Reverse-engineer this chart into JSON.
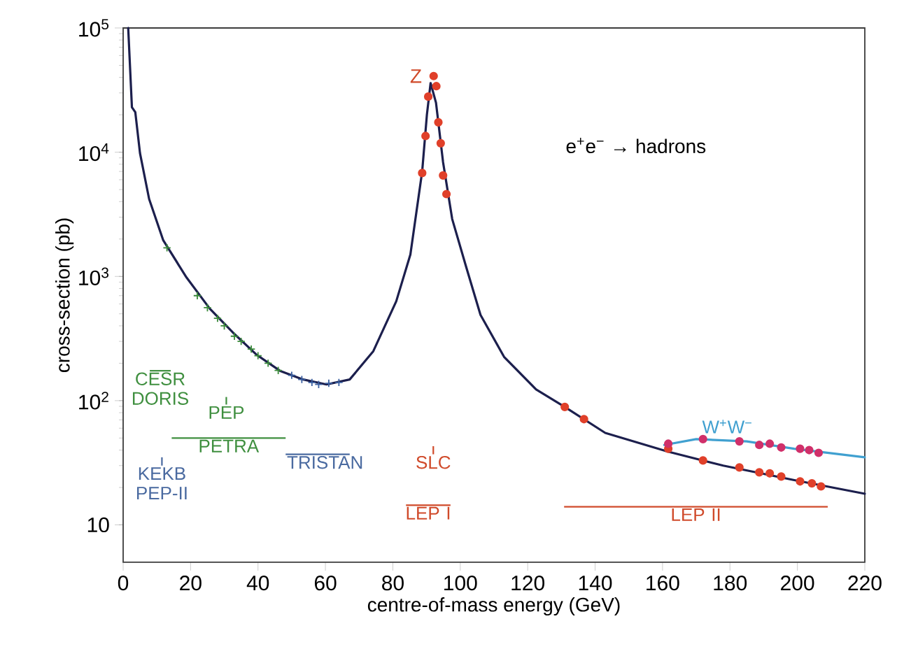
{
  "chart_data": {
    "type": "line",
    "xlabel": "centre-of-mass energy (GeV)",
    "ylabel": "cross-section (pb)",
    "log": "y",
    "xlim": [
      0,
      220
    ],
    "ylim": [
      5,
      100000
    ],
    "xticks": [
      0,
      20,
      40,
      60,
      80,
      100,
      120,
      140,
      160,
      180,
      200,
      220
    ],
    "yticks": [
      {
        "value": 10,
        "label": "10"
      },
      {
        "value": 100,
        "label": "10$^{2}$"
      },
      {
        "value": 1000,
        "label": "10$^{3}$"
      },
      {
        "value": 10000,
        "label": "10$^{4}$"
      },
      {
        "value": 100000,
        "label": "10$^{5}$"
      }
    ],
    "grid": false,
    "annotations": [
      "e$^{+}$e$^{−}$ → hadrons",
      {
        "text": "Z",
        "x": 91.2,
        "y": 41000
      }
    ],
    "series": [
      {
        "color": "#1c1f4d",
        "x": [
          1.5,
          2.6,
          3.6,
          5,
          7.7,
          11.9,
          18.8,
          25.7,
          32.7,
          39.5,
          46.5,
          53.4,
          60.3,
          67.2,
          74.2,
          81,
          85.2,
          88.7,
          90.1,
          91.2,
          92.8,
          94.9,
          97.6,
          101.8,
          106,
          113,
          122.5,
          131,
          143,
          161.4,
          178,
          198.8,
          220
        ],
        "values": [
          100000,
          23000,
          21000,
          9800,
          4200,
          1950,
          980,
          550,
          350,
          235,
          174,
          148,
          135,
          148,
          250,
          630,
          1500,
          7000,
          20000,
          36000,
          25000,
          8300,
          2900,
          1180,
          490,
          225,
          123,
          89,
          55,
          39,
          30,
          23,
          17.8
        ]
      },
      {
        "name": "W$^{+}$W$^{−}$",
        "color": "#40a0d0",
        "x": [
          160.5,
          170,
          185,
          199,
          220
        ],
        "values": [
          44,
          49,
          47,
          41,
          35
        ]
      },
      {
        "type": "scatter",
        "marker": "cross",
        "color": "#3a8a3a",
        "x": [
          13,
          22,
          25,
          28,
          30,
          33,
          35,
          38,
          40,
          43,
          46
        ],
        "values": [
          1700,
          700,
          560,
          460,
          400,
          330,
          300,
          260,
          230,
          200,
          175
        ]
      },
      {
        "type": "scatter",
        "marker": "cross",
        "color": "#3a5fa0",
        "x": [
          50,
          53,
          56,
          58,
          61,
          64
        ],
        "values": [
          160,
          148,
          140,
          135,
          138,
          140
        ]
      },
      {
        "type": "scatter",
        "marker": "circle",
        "color": "#e0402a",
        "x": [
          88.7,
          89.7,
          90.5,
          91.4,
          92.1,
          92.9,
          93.5,
          94.2,
          94.9,
          95.9,
          131,
          136.7,
          161.7,
          172,
          182.8,
          188.7,
          191.8,
          195.2,
          200.8,
          204.3,
          207
        ],
        "values": [
          6800,
          13500,
          28000,
          null,
          41000,
          34000,
          17400,
          11800,
          6500,
          4600,
          89,
          71,
          41,
          33,
          29,
          26.5,
          26,
          24.5,
          22.4,
          21.6,
          20.4
        ]
      },
      {
        "type": "scatter",
        "marker": "circle",
        "color": "#d0306a",
        "x": [
          161.7,
          172,
          182.8,
          188.7,
          191.8,
          195.2,
          200.8,
          203.5,
          206.3
        ],
        "values": [
          45,
          49,
          47,
          44,
          45,
          42,
          41,
          40,
          38
        ]
      },
      {
        "name": "CESR DORIS",
        "color": "#3f8f3f",
        "x": [
          7.9,
          14.1
        ],
        "values": [
          174,
          174
        ]
      },
      {
        "name": "PEP",
        "color": "#3f8f3f",
        "x": [
          30.6,
          30.6
        ],
        "values": [
          107,
          93
        ]
      },
      {
        "name": "PETRA",
        "color": "#3f8f3f",
        "x": [
          14.4,
          48.2
        ],
        "values": [
          50,
          50
        ]
      },
      {
        "name": "KEKB PEP-II",
        "color": "#4a6aa0",
        "x": [
          11.5,
          11.5
        ],
        "values": [
          35,
          30
        ]
      },
      {
        "name": "TRISTAN",
        "color": "#4a6aa0",
        "x": [
          48.2,
          67.2
        ],
        "values": [
          37,
          37
        ]
      },
      {
        "name": "SLC",
        "color": "#d04a2a",
        "x": [
          92,
          92
        ],
        "values": [
          43,
          37
        ]
      },
      {
        "name": "LEP I",
        "color": "#d04a2a",
        "x": [
          83.9,
          97.1
        ],
        "values": [
          14.4,
          14.4
        ]
      },
      {
        "name": "LEP II",
        "color": "#d04a2a",
        "x": [
          130.8,
          209
        ],
        "values": [
          14,
          14
        ]
      }
    ]
  }
}
